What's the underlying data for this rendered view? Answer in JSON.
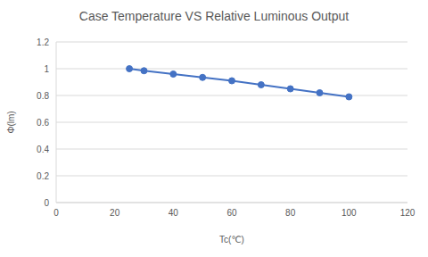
{
  "chart_data": {
    "type": "line",
    "title": "Case Temperature VS Relative Luminous Output",
    "x_label": "Tc(℃)",
    "y_label": "Φ(lm)",
    "x": [
      25,
      30,
      40,
      50,
      60,
      70,
      80,
      90,
      100
    ],
    "values": [
      1.0,
      0.985,
      0.96,
      0.935,
      0.91,
      0.88,
      0.85,
      0.82,
      0.79
    ],
    "color": "#4472c4",
    "marker": "circle",
    "line_style": "solid",
    "xlim": [
      0,
      120
    ],
    "xticks": [
      0,
      20,
      40,
      60,
      80,
      100,
      120
    ],
    "ylim": [
      0,
      1.2
    ],
    "yticks": [
      0,
      0.2,
      0.4,
      0.6,
      0.8,
      1,
      1.2
    ],
    "grid": true
  }
}
